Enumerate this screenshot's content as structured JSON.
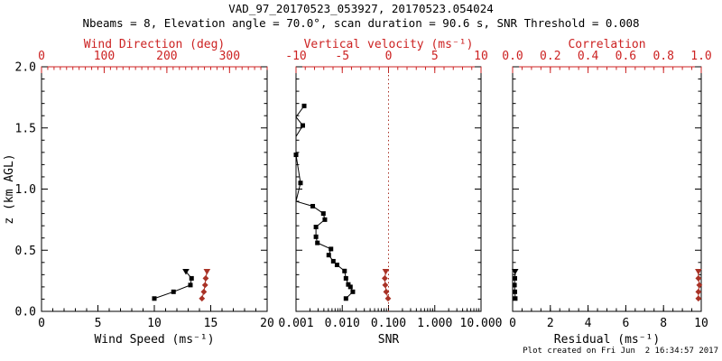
{
  "title": "VAD_97_20170523_053927, 20170523.054024",
  "subtitle": "Nbeams = 8, Elevation angle = 70.0°, scan duration = 90.6 s, SNR Threshold = 0.008",
  "footer": "Plot created on Fri Jun  2 16:34:57 2017",
  "ylabel": "z (km AGL)",
  "colors": {
    "background": "#ffffff",
    "black": "#000000",
    "axis_red": "#cc2222",
    "marker_red": "#a93226"
  },
  "chart_data": [
    {
      "type": "line",
      "name": "wind",
      "y": {
        "label": "z (km AGL)",
        "min": 0,
        "max": 2,
        "ticks": [
          0,
          0.5,
          1,
          1.5,
          2
        ],
        "tick_labels": [
          "0.0",
          "0.5",
          "1.0",
          "1.5",
          "2.0"
        ],
        "minor": 0.1
      },
      "x_bottom": {
        "label": "Wind Speed (ms⁻¹)",
        "min": 0,
        "max": 20,
        "ticks": [
          0,
          5,
          10,
          15,
          20
        ],
        "tick_labels": [
          "0",
          "5",
          "10",
          "15",
          "20"
        ],
        "minor": 1
      },
      "x_top": {
        "label": "Wind Direction (deg)",
        "min": 0,
        "max": 360,
        "ticks": [
          0,
          100,
          200,
          300
        ],
        "tick_labels": [
          "0",
          "100",
          "200",
          "300"
        ],
        "minor": 10
      },
      "series": [
        {
          "name": "wind-speed",
          "axis": "bottom",
          "color": "black",
          "marker": "square",
          "top_marker": "triangle-down",
          "z": [
            0.105,
            0.16,
            0.215,
            0.27,
            0.325
          ],
          "values": [
            10.0,
            11.7,
            13.2,
            13.3,
            12.8
          ]
        },
        {
          "name": "wind-direction",
          "axis": "top",
          "color": "red",
          "marker": "diamond",
          "top_marker": "triangle-down",
          "z": [
            0.105,
            0.16,
            0.215,
            0.27,
            0.325
          ],
          "values": [
            256,
            259,
            261,
            262,
            264
          ]
        }
      ]
    },
    {
      "type": "line",
      "name": "snr",
      "y": {
        "min": 0,
        "max": 2,
        "ticks": [
          0,
          0.5,
          1,
          1.5,
          2
        ],
        "minor": 0.1
      },
      "x_bottom": {
        "label": "SNR",
        "scale": "log",
        "min": 0.001,
        "max": 10,
        "tick_labels": [
          "0.001",
          "0.010",
          "0.100",
          "1.000",
          "10.000"
        ]
      },
      "x_top": {
        "label": "Vertical velocity (ms⁻¹)",
        "min": -10,
        "max": 10,
        "ticks": [
          -10,
          -5,
          0,
          5,
          10
        ],
        "tick_labels": [
          "-10",
          "-5",
          "0",
          "5",
          "10"
        ],
        "minor": 1
      },
      "ref_line": {
        "axis": "top",
        "value": 0,
        "style": "dotted",
        "color": "red"
      },
      "series": [
        {
          "name": "snr-profile",
          "axis": "bottom",
          "color": "black",
          "marker": "square",
          "points": [
            [
              0.0015,
              1.68,
              1
            ],
            [
              0.001,
              1.59,
              0
            ],
            [
              0.0014,
              1.52,
              1
            ],
            [
              0.001,
              1.43,
              0
            ],
            [
              0.001,
              1.28,
              1
            ],
            [
              0.00125,
              1.05,
              1
            ],
            [
              0.001,
              0.9,
              0
            ],
            [
              0.0023,
              0.86,
              1
            ],
            [
              0.0039,
              0.8,
              1
            ],
            [
              0.0042,
              0.75,
              1
            ],
            [
              0.0027,
              0.69,
              1
            ],
            [
              0.0027,
              0.61,
              1
            ],
            [
              0.0029,
              0.56,
              1
            ],
            [
              0.0057,
              0.51,
              1
            ],
            [
              0.0051,
              0.46,
              1
            ],
            [
              0.0064,
              0.41,
              1
            ],
            [
              0.0077,
              0.38,
              1
            ],
            [
              0.0112,
              0.33,
              1
            ],
            [
              0.012,
              0.27,
              1
            ],
            [
              0.0135,
              0.22,
              1
            ],
            [
              0.015,
              0.2,
              1
            ],
            [
              0.0169,
              0.16,
              1
            ],
            [
              0.012,
              0.105,
              1
            ]
          ]
        },
        {
          "name": "vertical-velocity",
          "axis": "top",
          "color": "red",
          "marker": "diamond",
          "top_marker": "triangle-down",
          "z": [
            0.105,
            0.16,
            0.215,
            0.27,
            0.325
          ],
          "values": [
            -0.05,
            -0.25,
            -0.35,
            -0.4,
            -0.3
          ]
        }
      ]
    },
    {
      "type": "line",
      "name": "residual",
      "y": {
        "min": 0,
        "max": 2,
        "ticks": [
          0,
          0.5,
          1,
          1.5,
          2
        ],
        "minor": 0.1
      },
      "x_bottom": {
        "label": "Residual (ms⁻¹)",
        "min": 0,
        "max": 10,
        "ticks": [
          0,
          2,
          4,
          6,
          8,
          10
        ],
        "tick_labels": [
          "0",
          "2",
          "4",
          "6",
          "8",
          "10"
        ],
        "minor": 0.5
      },
      "x_top": {
        "label": "Correlation",
        "min": 0,
        "max": 1,
        "ticks": [
          0,
          0.2,
          0.4,
          0.6,
          0.8,
          1.0
        ],
        "tick_labels": [
          "0.0",
          "0.2",
          "0.4",
          "0.6",
          "0.8",
          "1.0"
        ],
        "minor": 0.05
      },
      "series": [
        {
          "name": "residual",
          "axis": "bottom",
          "color": "black",
          "marker": "square",
          "top_marker": "triangle-down",
          "z": [
            0.105,
            0.16,
            0.215,
            0.27,
            0.325
          ],
          "values": [
            0.14,
            0.12,
            0.1,
            0.12,
            0.13
          ]
        },
        {
          "name": "correlation",
          "axis": "top",
          "color": "red",
          "marker": "diamond",
          "top_marker": "triangle-down",
          "z": [
            0.105,
            0.16,
            0.215,
            0.27,
            0.325
          ],
          "values": [
            0.985,
            0.985,
            0.99,
            0.985,
            0.985
          ]
        }
      ]
    }
  ]
}
